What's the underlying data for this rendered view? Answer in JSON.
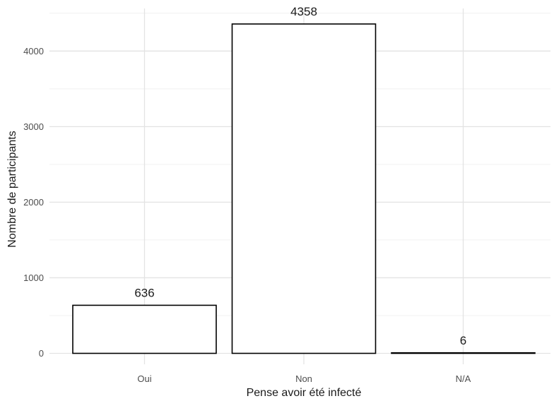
{
  "chart_data": {
    "type": "bar",
    "categories": [
      "Oui",
      "Non",
      "N/A"
    ],
    "values": [
      636,
      4358,
      6
    ],
    "data_labels": [
      "636",
      "4358",
      "6"
    ],
    "title": "",
    "xlabel": "Pense avoir été infecté",
    "ylabel": "Nombre de participants",
    "ylim": [
      0,
      4500
    ],
    "yticks": [
      0,
      1000,
      2000,
      3000,
      4000
    ],
    "ytick_labels": [
      "0",
      "1000",
      "2000",
      "3000",
      "4000"
    ],
    "grid": true,
    "legend": "none",
    "colors": {
      "bar_fill": "#ffffff",
      "bar_outline": "#000000",
      "grid": "#e3e3e3"
    }
  }
}
